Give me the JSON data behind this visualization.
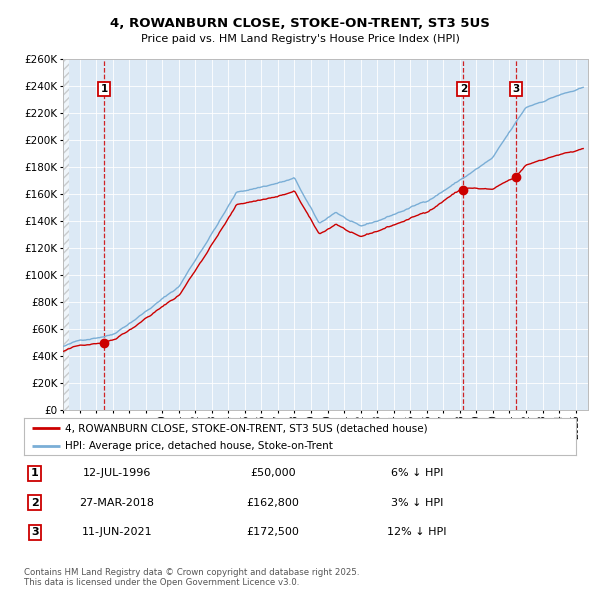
{
  "title1": "4, ROWANBURN CLOSE, STOKE-ON-TRENT, ST3 5US",
  "title2": "Price paid vs. HM Land Registry's House Price Index (HPI)",
  "legend_line1": "4, ROWANBURN CLOSE, STOKE-ON-TRENT, ST3 5US (detached house)",
  "legend_line2": "HPI: Average price, detached house, Stoke-on-Trent",
  "sale1_date": "12-JUL-1996",
  "sale1_price": 50000,
  "sale1_pct": "6% ↓ HPI",
  "sale2_date": "27-MAR-2018",
  "sale2_price": 162800,
  "sale2_pct": "3% ↓ HPI",
  "sale3_date": "11-JUN-2021",
  "sale3_price": 172500,
  "sale3_pct": "12% ↓ HPI",
  "footer": "Contains HM Land Registry data © Crown copyright and database right 2025.\nThis data is licensed under the Open Government Licence v3.0.",
  "sale_marker_color": "#cc0000",
  "hpi_line_color": "#7aaed6",
  "price_line_color": "#cc0000",
  "vline_color": "#cc0000",
  "plot_bg": "#dce9f5",
  "ylim": [
    0,
    260000
  ],
  "ytick_step": 20000,
  "xstart": 1994.0,
  "xend": 2025.75,
  "sale1_t": 1996.5,
  "sale2_t": 2018.21,
  "sale3_t": 2021.42
}
